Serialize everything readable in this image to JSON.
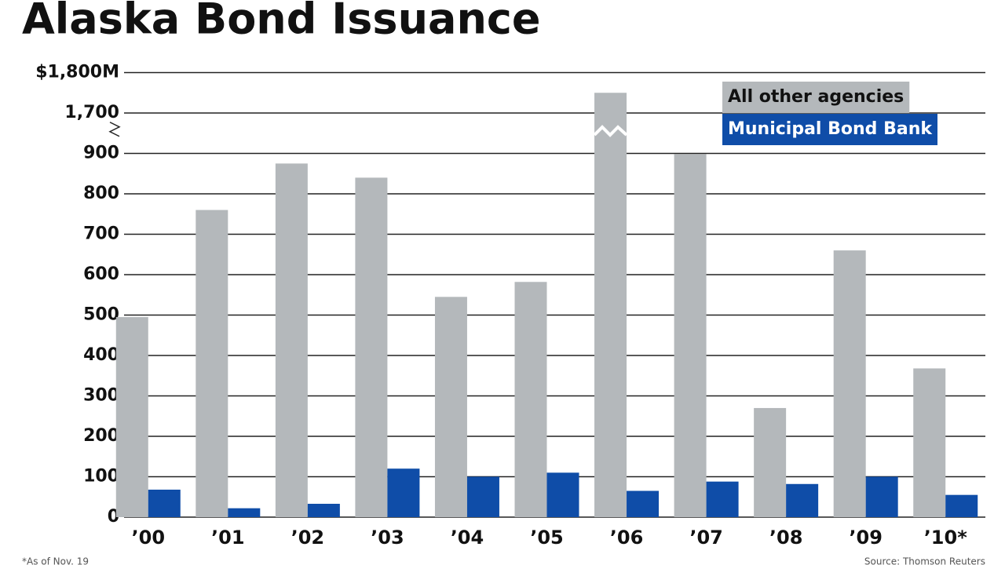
{
  "chart_data": {
    "type": "bar",
    "title": "Alaska Bond Issuance",
    "categories": [
      "’00",
      "’01",
      "’02",
      "’03",
      "’04",
      "’05",
      "’06",
      "’07",
      "’08",
      "’09",
      "’10*"
    ],
    "series": [
      {
        "name": "All other agencies",
        "color": "#b4b8bb",
        "values": [
          495,
          760,
          875,
          840,
          545,
          582,
          1750,
          898,
          270,
          660,
          368
        ]
      },
      {
        "name": "Municipal Bond Bank",
        "color": "#0f4da8",
        "values": [
          68,
          22,
          33,
          120,
          100,
          110,
          65,
          88,
          82,
          100,
          55
        ]
      }
    ],
    "ylim": [
      0,
      1800
    ],
    "ybreak": [
      1000,
      1700
    ],
    "yticks": [
      0,
      100,
      200,
      300,
      400,
      500,
      600,
      700,
      800,
      900,
      {
        "value": 1700,
        "label": "1,700"
      },
      {
        "value": 1800,
        "label": "$1,800M"
      }
    ],
    "grid": true,
    "legend": "top-right",
    "footnote": "*As of Nov. 19",
    "source": "Source: Thomson Reuters"
  }
}
